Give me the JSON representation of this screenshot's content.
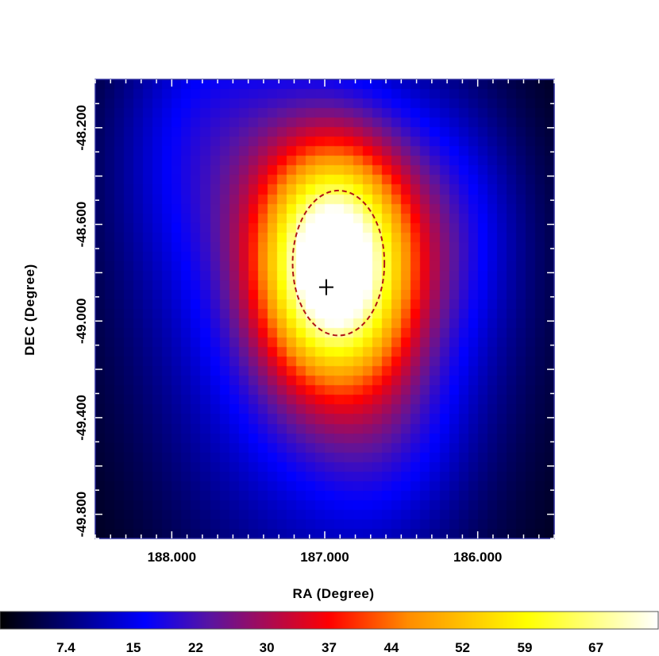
{
  "chart_data": {
    "type": "heatmap",
    "xlabel": "RA (Degree)",
    "ylabel": "DEC (Degree)",
    "xlim": [
      188.5,
      185.5
    ],
    "ylim": [
      -49.9,
      -48.0
    ],
    "x_ticks": [
      {
        "value": 188.0,
        "label": "188.000"
      },
      {
        "value": 187.0,
        "label": "187.000"
      },
      {
        "value": 186.0,
        "label": "186.000"
      }
    ],
    "y_ticks": [
      {
        "value": -48.2,
        "label": "-48.200"
      },
      {
        "value": -48.6,
        "label": "-48.600"
      },
      {
        "value": -49.0,
        "label": "-49.000"
      },
      {
        "value": -49.4,
        "label": "-49.400"
      },
      {
        "value": -49.8,
        "label": "-49.800"
      }
    ],
    "colorbar": {
      "colormap": "heat (black-blue-red-yellow-white)",
      "range": [
        0,
        74
      ],
      "tick_labels": [
        "7.4",
        "15",
        "22",
        "30",
        "37",
        "44",
        "52",
        "59",
        "67"
      ],
      "tick_values": [
        7.4,
        15,
        22,
        30,
        37,
        44,
        52,
        59,
        67
      ]
    },
    "peak": {
      "ra": 186.94,
      "dec": -48.76,
      "value": 74
    },
    "source_marker": {
      "type": "cross",
      "ra": 186.99,
      "dec": -48.86
    },
    "error_circle": {
      "ra_center": 186.91,
      "dec_center": -48.76,
      "radius_deg": 0.3,
      "style": "dashed",
      "color": "#b01515"
    },
    "colors": {
      "frame": "#2b2b9a",
      "circle": "#b01515",
      "cross": "#000000"
    }
  }
}
